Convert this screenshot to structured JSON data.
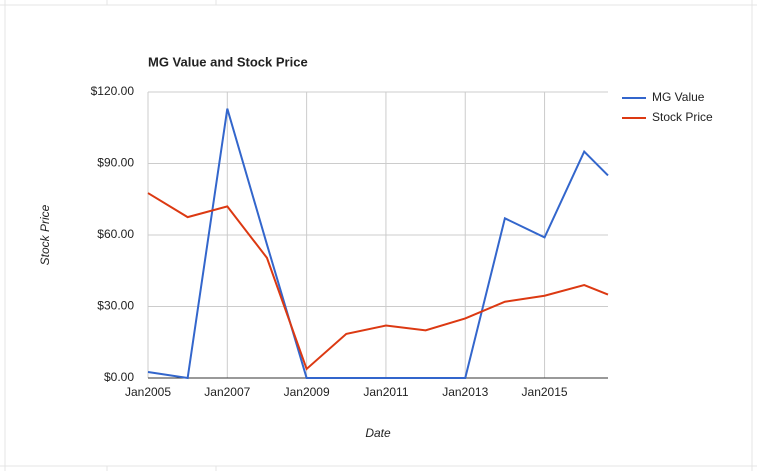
{
  "chart_data": {
    "type": "line",
    "title": "MG Value and Stock Price",
    "x_label": "Date",
    "y_label": "Stock Price",
    "x": [
      2005,
      2006,
      2007,
      2008,
      2009,
      2010,
      2011,
      2012,
      2013,
      2014,
      2015,
      2016,
      2016.6
    ],
    "series": [
      {
        "name": "MG Value",
        "color": "#3366cc",
        "values": [
          2.5,
          0,
          113,
          56,
          0,
          0,
          0,
          0,
          0,
          67,
          59,
          95,
          85
        ]
      },
      {
        "name": "Stock Price",
        "color": "#dc3912",
        "values": [
          77.6,
          67.5,
          72,
          50.4,
          3.8,
          18.5,
          22,
          20,
          25,
          32,
          34.5,
          39,
          35
        ]
      }
    ],
    "xlim": [
      2005,
      2016.6
    ],
    "xticks": [
      {
        "value": 2005,
        "label": "Jan2005"
      },
      {
        "value": 2007,
        "label": "Jan2007"
      },
      {
        "value": 2009,
        "label": "Jan2009"
      },
      {
        "value": 2011,
        "label": "Jan2011"
      },
      {
        "value": 2013,
        "label": "Jan2013"
      },
      {
        "value": 2015,
        "label": "Jan2015"
      }
    ],
    "ylim": [
      0,
      120
    ],
    "yticks": [
      {
        "value": 0,
        "label": "$0.00"
      },
      {
        "value": 30,
        "label": "$30.00"
      },
      {
        "value": 60,
        "label": "$60.00"
      },
      {
        "value": 90,
        "label": "$90.00"
      },
      {
        "value": 120,
        "label": "$120.00"
      }
    ],
    "grid": true,
    "legend": "right"
  }
}
